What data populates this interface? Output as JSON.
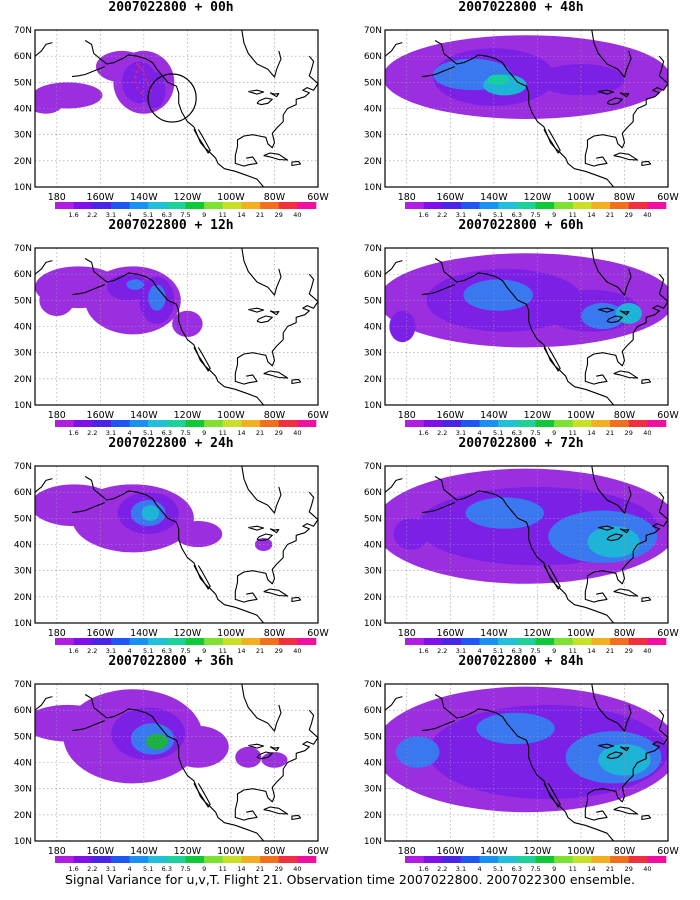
{
  "colors": {
    "land_outline": "#000000",
    "grid": "#999999",
    "frame": "#000000",
    "flight_track": "#e8246a"
  },
  "colorbar": {
    "labels": [
      "1.6",
      "2.2",
      "3.1",
      "4",
      "5.1",
      "6.3",
      "7.5",
      "9",
      "11",
      "14",
      "21",
      "29",
      "40"
    ],
    "colors": [
      "#b01fe0",
      "#8010e8",
      "#4b25e6",
      "#1f55f0",
      "#1a90f0",
      "#22c0d8",
      "#1ed09a",
      "#10c83a",
      "#7ee030",
      "#c8e028",
      "#f0b020",
      "#f07020",
      "#f03040",
      "#f00fa0"
    ]
  },
  "axes": {
    "lon_labels": [
      "180",
      "160W",
      "140W",
      "120W",
      "100W",
      "80W",
      "60W"
    ],
    "lat_labels": [
      "70N",
      "60N",
      "50N",
      "40N",
      "30N",
      "20N",
      "10N"
    ]
  },
  "panels": [
    {
      "title": "2007022800 + 00h",
      "level": 0
    },
    {
      "title": "2007022800 + 48h",
      "level": 4
    },
    {
      "title": "2007022800 + 12h",
      "level": 1
    },
    {
      "title": "2007022800 + 60h",
      "level": 5
    },
    {
      "title": "2007022800 + 24h",
      "level": 2
    },
    {
      "title": "2007022800 + 72h",
      "level": 6
    },
    {
      "title": "2007022800 + 36h",
      "level": 3
    },
    {
      "title": "2007022800 + 84h",
      "level": 7
    }
  ],
  "caption": "Signal Variance for u,v,T. Flight 21. Observation time 2007022800. 2007022300 ensemble."
}
